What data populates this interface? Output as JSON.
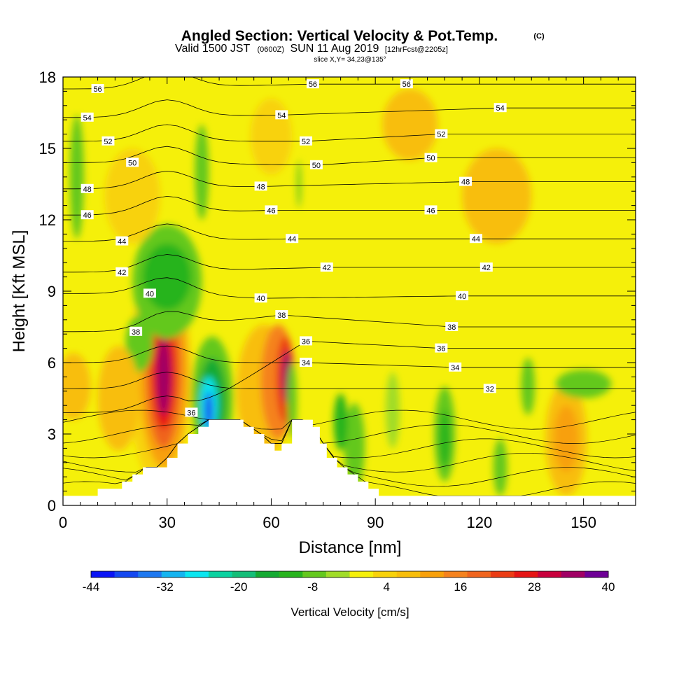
{
  "header": {
    "title": "Angled Section: Vertical Velocity & Pot.Temp.",
    "copyright": "(C)",
    "valid_prefix": "Valid 1500 JST",
    "valid_utc": "(0600Z)",
    "valid_date": "SUN 11 Aug 2019",
    "forecast": "[12hrFcst@2205z]",
    "slice": "slice X,Y= 34,23@135°"
  },
  "colors": {
    "background_fill": "#f5f00a",
    "terrain": "#ffffff",
    "contour": "#000000"
  },
  "chart_data": {
    "type": "heatmap",
    "xlabel": "Distance [nm]",
    "ylabel": "Height [Kft MSL]",
    "xlim": [
      0,
      165
    ],
    "ylim": [
      0,
      18
    ],
    "x_ticks": [
      "0",
      "30",
      "60",
      "90",
      "120",
      "150"
    ],
    "x_tick_values": [
      0,
      30,
      60,
      90,
      120,
      150
    ],
    "y_ticks": [
      "0",
      "3",
      "6",
      "9",
      "12",
      "15",
      "18"
    ],
    "y_tick_values": [
      0,
      3,
      6,
      9,
      12,
      15,
      18
    ],
    "colorbar": {
      "label": "Vertical Velocity [cm/s]",
      "tick_labels": [
        "-44",
        "-32",
        "-20",
        "-8",
        "4",
        "16",
        "28",
        "40"
      ],
      "tick_values": [
        -44,
        -32,
        -20,
        -8,
        4,
        16,
        28,
        40
      ],
      "levels": [
        -44,
        -40,
        -36,
        -32,
        -28,
        -24,
        -20,
        -16,
        -12,
        -8,
        -4,
        0,
        4,
        8,
        12,
        16,
        20,
        24,
        28,
        32,
        36,
        40
      ],
      "colors": [
        "#0a14f5",
        "#1448f0",
        "#1e78f0",
        "#14b4f0",
        "#0ae6f0",
        "#0ad2a0",
        "#14be78",
        "#14aa32",
        "#28b41e",
        "#64c81e",
        "#a0dc28",
        "#f5f00a",
        "#f8d20a",
        "#f8be0a",
        "#f8a00a",
        "#f5821e",
        "#f0641e",
        "#eb3c14",
        "#e61414",
        "#c8003c",
        "#a00064",
        "#6e0096"
      ]
    },
    "terrain_profile": [
      [
        0,
        0.4
      ],
      [
        10,
        0.4
      ],
      [
        10,
        0.7
      ],
      [
        17,
        0.7
      ],
      [
        17,
        1
      ],
      [
        20,
        1
      ],
      [
        20,
        1.3
      ],
      [
        23,
        1.3
      ],
      [
        23,
        1.6
      ],
      [
        30,
        1.6
      ],
      [
        30,
        2
      ],
      [
        33,
        2
      ],
      [
        33,
        2.6
      ],
      [
        36,
        2.6
      ],
      [
        36,
        3
      ],
      [
        39,
        3
      ],
      [
        39,
        3.3
      ],
      [
        42,
        3.3
      ],
      [
        42,
        3.6
      ],
      [
        52,
        3.6
      ],
      [
        52,
        3.3
      ],
      [
        55,
        3.3
      ],
      [
        55,
        3
      ],
      [
        58,
        3
      ],
      [
        58,
        2.6
      ],
      [
        61,
        2.6
      ],
      [
        61,
        2.3
      ],
      [
        63,
        2.3
      ],
      [
        63,
        2.6
      ],
      [
        66,
        2.6
      ],
      [
        66,
        3.6
      ],
      [
        72,
        3.6
      ],
      [
        72,
        3.3
      ],
      [
        74,
        3.3
      ],
      [
        74,
        2.6
      ],
      [
        76,
        2.6
      ],
      [
        76,
        2
      ],
      [
        79,
        2
      ],
      [
        79,
        1.6
      ],
      [
        82,
        1.6
      ],
      [
        82,
        1.3
      ],
      [
        85,
        1.3
      ],
      [
        85,
        1
      ],
      [
        88,
        1
      ],
      [
        88,
        0.7
      ],
      [
        91,
        0.7
      ],
      [
        91,
        0.4
      ],
      [
        165,
        0.4
      ]
    ],
    "potential_temperature_labels": [
      {
        "text": "56",
        "x": 10,
        "y": 17.5
      },
      {
        "text": "56",
        "x": 72,
        "y": 17.7
      },
      {
        "text": "56",
        "x": 99,
        "y": 17.7
      },
      {
        "text": "54",
        "x": 7,
        "y": 16.3
      },
      {
        "text": "54",
        "x": 63,
        "y": 16.4
      },
      {
        "text": "54",
        "x": 126,
        "y": 16.7
      },
      {
        "text": "52",
        "x": 13,
        "y": 15.3
      },
      {
        "text": "52",
        "x": 70,
        "y": 15.3
      },
      {
        "text": "52",
        "x": 109,
        "y": 15.6
      },
      {
        "text": "50",
        "x": 20,
        "y": 14.4
      },
      {
        "text": "50",
        "x": 73,
        "y": 14.3
      },
      {
        "text": "50",
        "x": 106,
        "y": 14.6
      },
      {
        "text": "48",
        "x": 7,
        "y": 13.3
      },
      {
        "text": "48",
        "x": 57,
        "y": 13.4
      },
      {
        "text": "48",
        "x": 116,
        "y": 13.6
      },
      {
        "text": "46",
        "x": 7,
        "y": 12.2
      },
      {
        "text": "46",
        "x": 60,
        "y": 12.4
      },
      {
        "text": "46",
        "x": 106,
        "y": 12.4
      },
      {
        "text": "44",
        "x": 17,
        "y": 11.1
      },
      {
        "text": "44",
        "x": 66,
        "y": 11.2
      },
      {
        "text": "44",
        "x": 119,
        "y": 11.2
      },
      {
        "text": "42",
        "x": 17,
        "y": 9.8
      },
      {
        "text": "42",
        "x": 76,
        "y": 10
      },
      {
        "text": "42",
        "x": 122,
        "y": 10
      },
      {
        "text": "40",
        "x": 25,
        "y": 8.9
      },
      {
        "text": "40",
        "x": 57,
        "y": 8.7
      },
      {
        "text": "40",
        "x": 115,
        "y": 8.8
      },
      {
        "text": "38",
        "x": 21,
        "y": 7.3
      },
      {
        "text": "38",
        "x": 63,
        "y": 8
      },
      {
        "text": "38",
        "x": 112,
        "y": 7.5
      },
      {
        "text": "36",
        "x": 70,
        "y": 6.9
      },
      {
        "text": "36",
        "x": 109,
        "y": 6.6
      },
      {
        "text": "36",
        "x": 37,
        "y": 3.9
      },
      {
        "text": "34",
        "x": 70,
        "y": 6
      },
      {
        "text": "34",
        "x": 113,
        "y": 5.8
      },
      {
        "text": "32",
        "x": 123,
        "y": 4.9
      }
    ]
  }
}
